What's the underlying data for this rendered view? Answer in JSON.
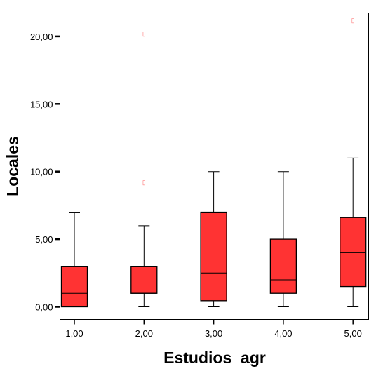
{
  "chart_data": {
    "type": "boxplot",
    "title": "",
    "xlabel": "Estudios_agr",
    "ylabel": "Locales",
    "categories": [
      "1,00",
      "2,00",
      "3,00",
      "4,00",
      "5,00"
    ],
    "ylim": [
      -0.9,
      22.0
    ],
    "y_ticks": [
      {
        "value": 0,
        "label": "0,00"
      },
      {
        "value": 5,
        "label": "5,00"
      },
      {
        "value": 10,
        "label": "10,00"
      },
      {
        "value": 15,
        "label": "15,00"
      },
      {
        "value": 20,
        "label": "20,00"
      }
    ],
    "boxes": [
      {
        "category": "1,00",
        "whisker_low": 0,
        "q1": 0,
        "median": 1,
        "q3": 3,
        "whisker_high": 7,
        "outliers": []
      },
      {
        "category": "2,00",
        "whisker_low": 0,
        "q1": 1,
        "median": 1,
        "q3": 3,
        "whisker_high": 6,
        "outliers": [
          9.2,
          20.2
        ]
      },
      {
        "category": "3,00",
        "whisker_low": 0,
        "q1": 0.45,
        "median": 2.5,
        "q3": 7,
        "whisker_high": 10,
        "outliers": []
      },
      {
        "category": "4,00",
        "whisker_low": 0,
        "q1": 1,
        "median": 2,
        "q3": 5,
        "whisker_high": 10,
        "outliers": []
      },
      {
        "category": "5,00",
        "whisker_low": 0,
        "q1": 1.5,
        "median": 4,
        "q3": 6.6,
        "whisker_high": 11,
        "outliers": [
          21.2
        ]
      }
    ],
    "outlier_glyph": "▯",
    "colors": {
      "box_fill": "#ff3333",
      "outlier": "#ff6666",
      "line": "#000000",
      "background": "#ffffff"
    },
    "grid": false,
    "legend": "none"
  }
}
